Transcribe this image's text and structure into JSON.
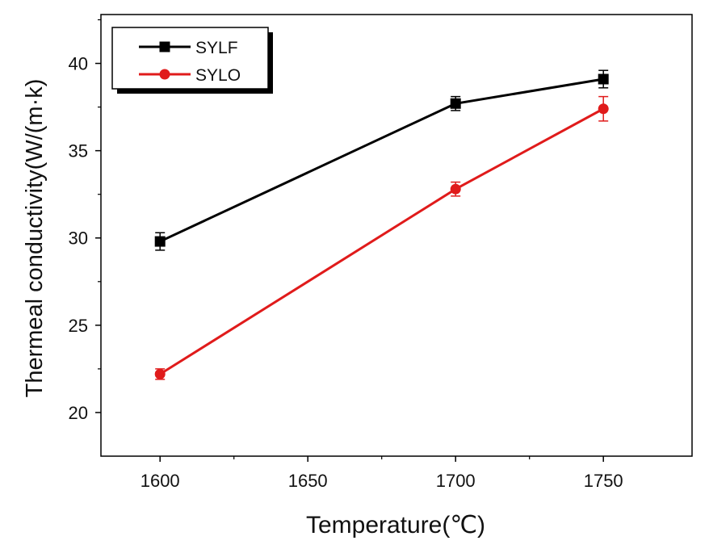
{
  "chart_data": {
    "type": "line",
    "title": "",
    "xlabel": "Temperature(℃)",
    "ylabel": "Thermeal conductivity(W/(m·k)",
    "xlim": [
      1580,
      1780
    ],
    "ylim": [
      17.5,
      42.8
    ],
    "x_ticks": [
      1600,
      1650,
      1700,
      1750
    ],
    "x_tick_labels": [
      "1600",
      "1650",
      "1700",
      "1750"
    ],
    "y_ticks": [
      20,
      25,
      30,
      35,
      40
    ],
    "y_tick_labels": [
      "20",
      "25",
      "30",
      "35",
      "40"
    ],
    "x": [
      1600,
      1700,
      1750
    ],
    "series": [
      {
        "name": "SYLF",
        "marker": "square",
        "color": "#000000",
        "values": [
          29.8,
          37.7,
          39.1
        ],
        "errors": [
          0.5,
          0.4,
          0.5
        ]
      },
      {
        "name": "SYLO",
        "marker": "circle",
        "color": "#e01b1b",
        "values": [
          22.2,
          32.8,
          37.4
        ],
        "errors": [
          0.3,
          0.4,
          0.7
        ]
      }
    ],
    "legend_position": "top-left",
    "grid": false
  }
}
